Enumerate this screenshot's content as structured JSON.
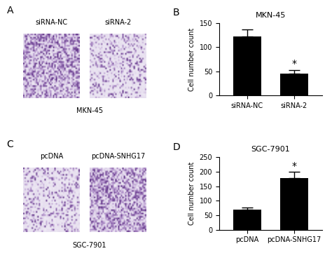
{
  "panel_letters": [
    "A",
    "B",
    "C",
    "D"
  ],
  "image_panels": [
    {
      "images": [
        "siRNA-NC",
        "siRNA-2"
      ],
      "caption": "MKN-45"
    },
    {
      "images": [
        "pcDNA",
        "pcDNA-SNHG17"
      ],
      "caption": "SGC-7901"
    }
  ],
  "chart_data": [
    {
      "type": "bar",
      "title": "MKN-45",
      "y_label": "Cell number count",
      "categories": [
        "siRNA-NC",
        "siRNA-2"
      ],
      "values": [
        122,
        46
      ],
      "errors": [
        15,
        7
      ],
      "color": "#000000",
      "ylim": [
        0,
        150
      ],
      "yticks": [
        0,
        50,
        100,
        150
      ],
      "annotations": [
        {
          "text": "*",
          "category": "siRNA-2"
        }
      ]
    },
    {
      "type": "bar",
      "title": "SGC-7901",
      "y_label": "Cell number count",
      "categories": [
        "pcDNA",
        "pcDNA-SNHG17"
      ],
      "values": [
        68,
        178
      ],
      "errors": [
        8,
        22
      ],
      "color": "#000000",
      "ylim": [
        0,
        250
      ],
      "yticks": [
        0,
        50,
        100,
        150,
        200,
        250
      ],
      "annotations": [
        {
          "text": "*",
          "category": "pcDNA-SNHG17"
        }
      ]
    }
  ]
}
